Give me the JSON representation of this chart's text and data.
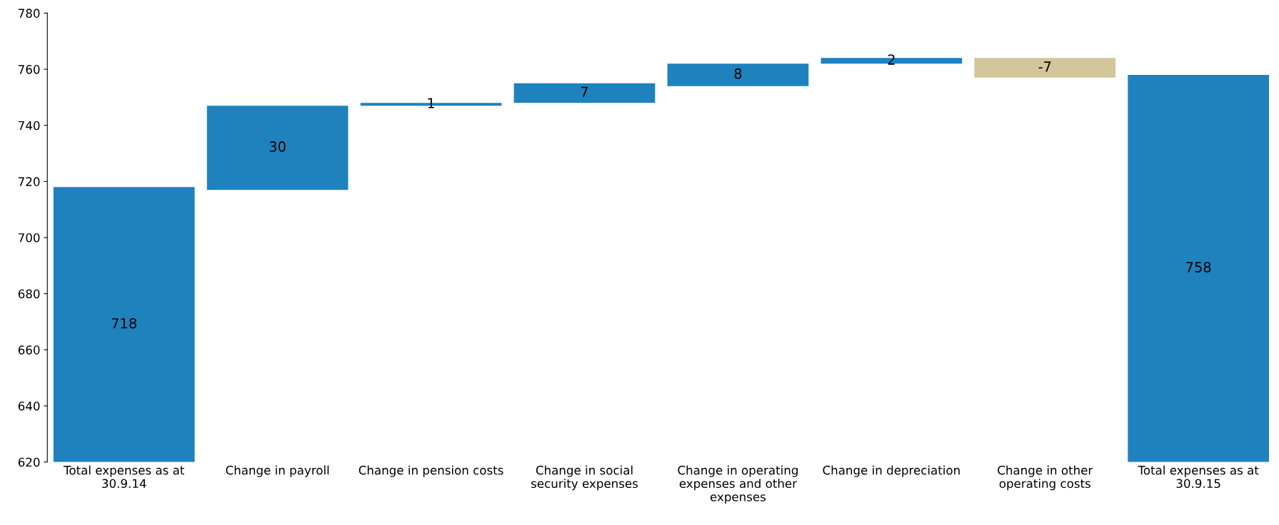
{
  "chart_data": {
    "type": "bar",
    "categories": [
      "Total expenses as at 30.9.14",
      "Change in payroll",
      "Change in pension costs",
      "Change in social security expenses",
      "Change in operating expenses and other expenses",
      "Change in depreciation",
      "Change in other operating costs",
      "Total expenses as at 30.9.15"
    ],
    "values": [
      98,
      30,
      1,
      7,
      8,
      2,
      -7,
      138
    ],
    "base": [
      620,
      717,
      747,
      748,
      754,
      762,
      764,
      620
    ],
    "value_labels": [
      "718",
      "30",
      "1",
      "7",
      "8",
      "2",
      "-7",
      "758"
    ],
    "colors": [
      "#1f82bd",
      "#1f82bd",
      "#1f82bd",
      "#1f82bd",
      "#1f82bd",
      "#1f82bd",
      "#d2c69b",
      "#1f82bd"
    ],
    "ylim": [
      620,
      780
    ],
    "yticks": [
      620,
      640,
      660,
      680,
      700,
      720,
      740,
      760,
      780
    ],
    "grid": false,
    "legend": false
  }
}
